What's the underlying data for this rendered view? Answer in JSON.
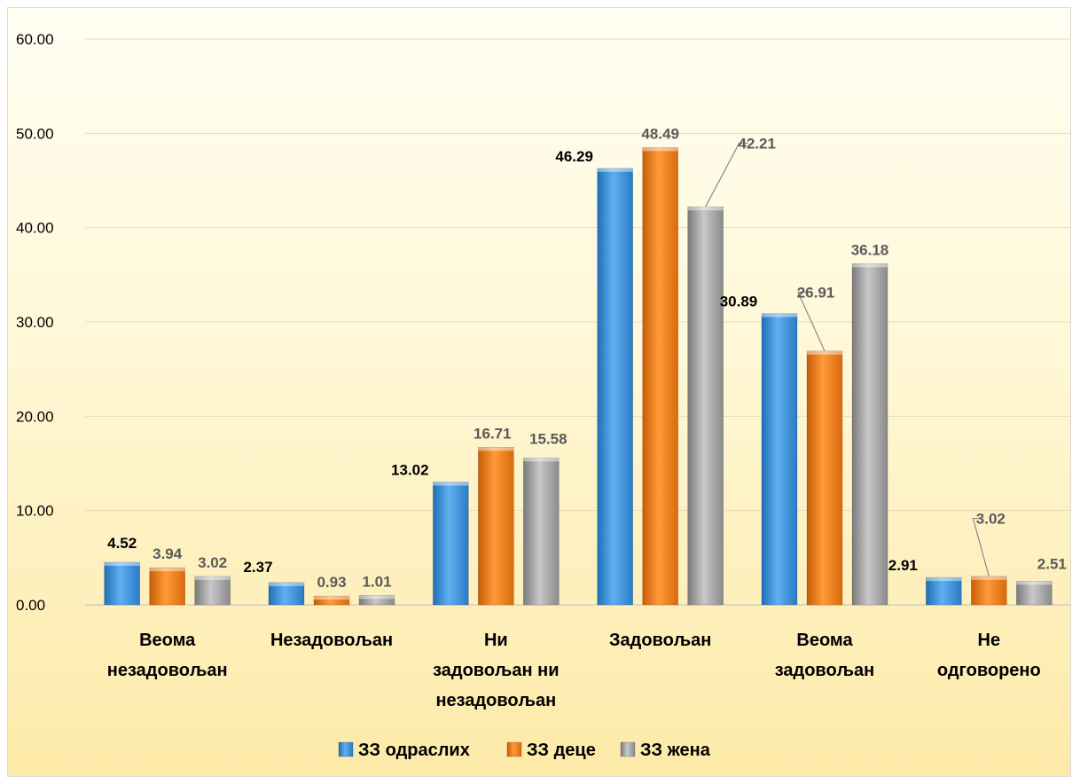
{
  "chart_data": {
    "type": "bar",
    "categories": [
      [
        "Веома",
        "незадовољан"
      ],
      [
        "Незадовољан"
      ],
      [
        "Ни",
        "задовољан ни",
        "незадовољан"
      ],
      [
        "Задовољан"
      ],
      [
        "Веома",
        "задовољан"
      ],
      [
        "Не",
        "одговорено"
      ]
    ],
    "series": [
      {
        "name": "ЗЗ одраслих",
        "color": "#3a8fd8",
        "label_color": "#000000",
        "values": [
          4.52,
          2.37,
          13.02,
          46.29,
          30.89,
          2.91
        ]
      },
      {
        "name": "ЗЗ деце",
        "color": "#f07c12",
        "label_color": "#5a5a5a",
        "values": [
          3.94,
          0.93,
          16.71,
          48.49,
          26.91,
          3.02
        ]
      },
      {
        "name": "ЗЗ жена",
        "color": "#9c9c9c",
        "label_color": "#5a5a5a",
        "values": [
          3.02,
          1.01,
          15.58,
          42.21,
          36.18,
          2.51
        ]
      }
    ],
    "value_labels": {
      "ЗЗ одраслих": [
        "4.52",
        "2.37",
        "13.02",
        "46.29",
        "30.89",
        "2.91"
      ],
      "ЗЗ деце": [
        "3.94",
        "0.93",
        "16.71",
        "48.49",
        "26.91",
        "3.02"
      ],
      "ЗЗ жена": [
        "3.02",
        "1.01",
        "15.58",
        "42.21",
        "36.18",
        "2.51"
      ]
    },
    "y_ticks": [
      "0.00",
      "10.00",
      "20.00",
      "30.00",
      "40.00",
      "50.00",
      "60.00"
    ],
    "ylim": [
      0,
      60
    ],
    "title": "",
    "xlabel": "",
    "ylabel": "",
    "grid": true,
    "legend_position": "bottom"
  }
}
